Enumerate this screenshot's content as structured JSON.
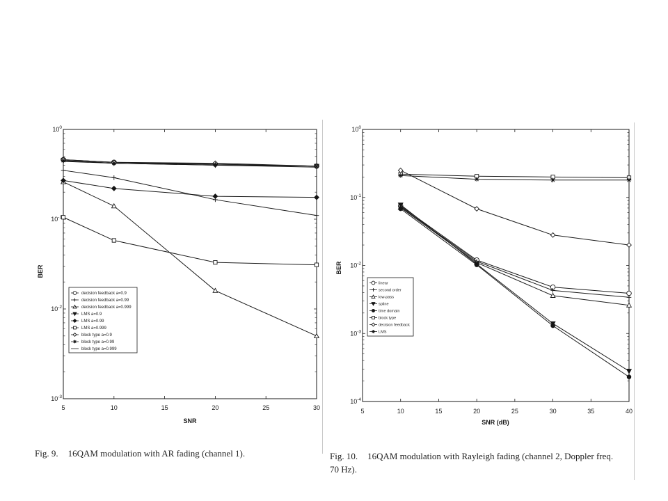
{
  "figures": [
    {
      "caption_label": "Fig. 9.",
      "caption_text": "16QAM modulation with AR fading (channel 1)."
    },
    {
      "caption_label": "Fig. 10.",
      "caption_text": "16QAM modulation with Rayleigh fading (channel 2, Doppler freq.",
      "caption_continued": "70 Hz)."
    }
  ],
  "chart_data": [
    {
      "type": "line",
      "xlabel": "SNR",
      "ylabel": "BER",
      "x": [
        5,
        10,
        20,
        30
      ],
      "xlim": [
        5,
        30
      ],
      "xticks": [
        5,
        10,
        15,
        20,
        25,
        30
      ],
      "xtick_labels": [
        "5",
        "10",
        "15",
        "20",
        "25",
        "30"
      ],
      "yscale": "log",
      "ylim": [
        0.001,
        1
      ],
      "yticks": [
        1,
        0.1,
        0.01,
        0.001
      ],
      "ytick_labels": [
        {
          "base": "10",
          "exp": "0"
        },
        {
          "base": "10",
          "exp": "-1"
        },
        {
          "base": "10",
          "exp": "-2"
        },
        {
          "base": "10",
          "exp": "-3"
        }
      ],
      "grid": false,
      "legend_position": "lower-left",
      "line_color": "#1a1a1a",
      "series": [
        {
          "name": "decision feedback a=0.9",
          "marker": "circle",
          "values": [
            0.46,
            0.43,
            0.41,
            0.39
          ]
        },
        {
          "name": "decision feedback a=0.99",
          "marker": "plus",
          "values": [
            0.35,
            0.29,
            0.165,
            0.11
          ]
        },
        {
          "name": "decision feedback a=0.999",
          "marker": "triangle",
          "values": [
            0.26,
            0.14,
            0.016,
            0.005
          ]
        },
        {
          "name": "LMS a=0.9",
          "marker": "triangle-down",
          "values": [
            0.45,
            0.42,
            0.4,
            0.39
          ]
        },
        {
          "name": "LMS a=0.99",
          "marker": "diamond-filled",
          "values": [
            0.27,
            0.22,
            0.18,
            0.175
          ]
        },
        {
          "name": "LMS a=0.999",
          "marker": "square",
          "values": [
            0.105,
            0.058,
            0.033,
            0.031
          ]
        },
        {
          "name": "block type a=0.9",
          "marker": "diamond",
          "values": [
            0.46,
            0.43,
            0.42,
            0.39
          ]
        },
        {
          "name": "block type a=0.99",
          "marker": "star",
          "values": [
            0.45,
            0.42,
            0.41,
            0.39
          ]
        },
        {
          "name": "block type a=0.999",
          "marker": "none",
          "values": [
            0.44,
            0.42,
            0.4,
            0.38
          ]
        }
      ]
    },
    {
      "type": "line",
      "xlabel": "SNR (dB)",
      "ylabel": "BER",
      "x": [
        10,
        20,
        30,
        40
      ],
      "xlim": [
        5,
        40
      ],
      "xticks": [
        5,
        10,
        15,
        20,
        25,
        30,
        35,
        40
      ],
      "xtick_labels": [
        "5",
        "10",
        "15",
        "20",
        "25",
        "30",
        "35",
        "40"
      ],
      "yscale": "log",
      "ylim": [
        0.0001,
        1
      ],
      "yticks": [
        1,
        0.1,
        0.01,
        0.001,
        0.0001
      ],
      "ytick_labels": [
        {
          "base": "10",
          "exp": "0"
        },
        {
          "base": "10",
          "exp": "-1"
        },
        {
          "base": "10",
          "exp": "-2"
        },
        {
          "base": "10",
          "exp": "-3"
        },
        {
          "base": "10",
          "exp": "-4"
        }
      ],
      "grid": false,
      "legend_position": "lower-left",
      "line_color": "#1a1a1a",
      "series": [
        {
          "name": "linear",
          "marker": "circle",
          "values": [
            0.075,
            0.012,
            0.0048,
            0.0039
          ]
        },
        {
          "name": "second order",
          "marker": "plus",
          "values": [
            0.073,
            0.0115,
            0.0043,
            0.0034
          ]
        },
        {
          "name": "low-pass",
          "marker": "triangle",
          "values": [
            0.071,
            0.011,
            0.0036,
            0.0026
          ]
        },
        {
          "name": "spline",
          "marker": "triangle-down",
          "values": [
            0.078,
            0.0105,
            0.0014,
            0.00028
          ]
        },
        {
          "name": "time domain",
          "marker": "circle-filled",
          "values": [
            0.068,
            0.0102,
            0.0013,
            0.00023
          ]
        },
        {
          "name": "block type",
          "marker": "square",
          "values": [
            0.22,
            0.205,
            0.2,
            0.195
          ]
        },
        {
          "name": "decision feedback",
          "marker": "diamond",
          "values": [
            0.25,
            0.068,
            0.028,
            0.02
          ]
        },
        {
          "name": "LMS",
          "marker": "star",
          "values": [
            0.21,
            0.185,
            0.18,
            0.18
          ]
        }
      ]
    }
  ]
}
